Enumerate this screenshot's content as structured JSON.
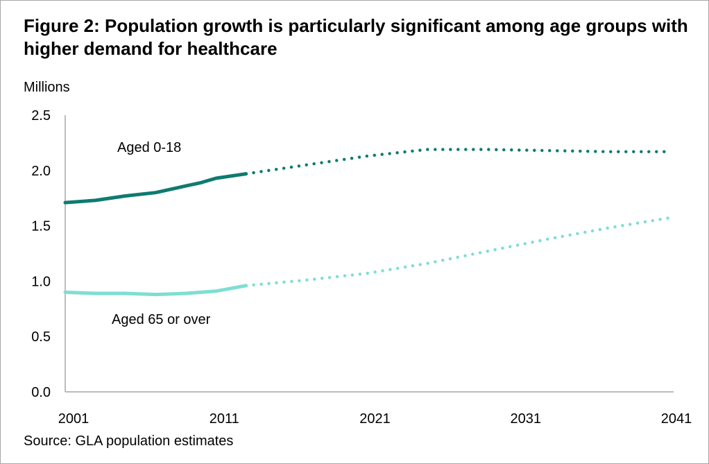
{
  "title": "Figure 2: Population growth is particularly significant among age groups with higher demand for healthcare",
  "unit_label": "Millions",
  "source": "Source: GLA population estimates",
  "colors": {
    "aged_0_18": "#0e7b70",
    "aged_65_plus": "#7fded3",
    "axis": "#a6a6a6"
  },
  "chart_data": {
    "type": "line",
    "title": "Figure 2: Population growth is particularly significant among age groups with higher demand for healthcare",
    "ylabel": "Millions",
    "xlabel": "",
    "ylim": [
      0,
      2.5
    ],
    "xlim": [
      2001,
      2041
    ],
    "yticks": [
      "0.0",
      "0.5",
      "1.0",
      "1.5",
      "2.0",
      "2.5"
    ],
    "xticks": [
      "2001",
      "2011",
      "2021",
      "2031",
      "2041"
    ],
    "grid": false,
    "legend": "inline labels",
    "series": [
      {
        "name": "Aged 0-18",
        "label_key": "aged_0_18",
        "actual": {
          "x": [
            2001,
            2003,
            2005,
            2007,
            2009,
            2010,
            2011,
            2013
          ],
          "y": [
            1.71,
            1.73,
            1.77,
            1.8,
            1.86,
            1.89,
            1.93,
            1.97
          ]
        },
        "projected": {
          "x": [
            2013,
            2017,
            2021,
            2025,
            2029,
            2033,
            2037,
            2041
          ],
          "y": [
            1.97,
            2.05,
            2.13,
            2.19,
            2.19,
            2.18,
            2.17,
            2.17
          ]
        }
      },
      {
        "name": "Aged 65 or over",
        "label_key": "aged_65_plus",
        "actual": {
          "x": [
            2001,
            2003,
            2005,
            2007,
            2009,
            2011,
            2013
          ],
          "y": [
            0.9,
            0.89,
            0.89,
            0.88,
            0.89,
            0.91,
            0.96
          ]
        },
        "projected": {
          "x": [
            2013,
            2017,
            2021,
            2025,
            2029,
            2033,
            2037,
            2041
          ],
          "y": [
            0.96,
            1.01,
            1.07,
            1.16,
            1.27,
            1.38,
            1.48,
            1.57
          ]
        }
      }
    ]
  }
}
